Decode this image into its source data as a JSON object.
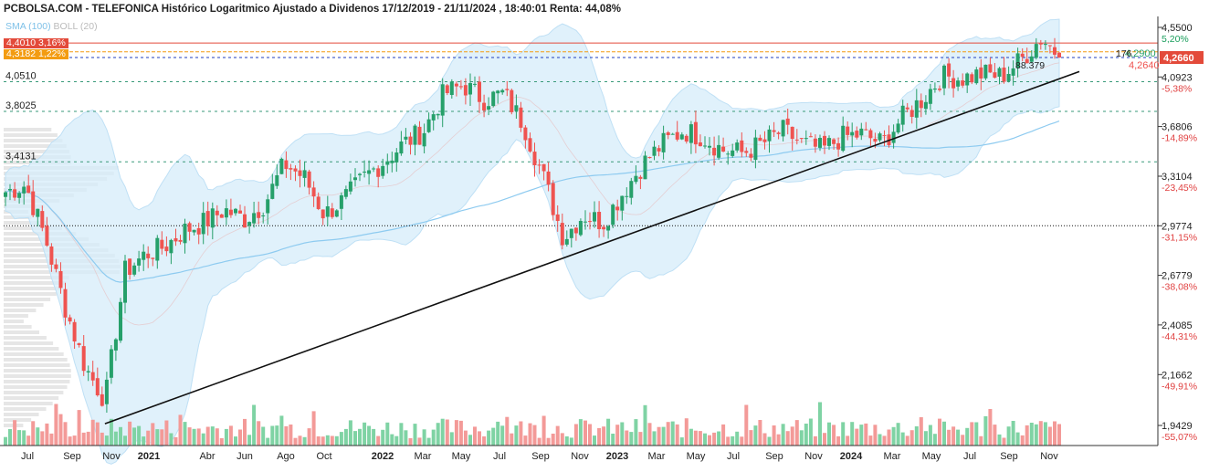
{
  "header": {
    "title": "PCBOLSA.COM - TELEFONICA Histórico Logaritmico Ajustado a Dividenos 17/12/2019 - 21/11/2024 , 18:40:01 Renta: 44,08%",
    "legend_sma": "SMA (100)",
    "legend_boll": "BOLL (20)"
  },
  "tags": {
    "red": "4,4010  3,16%",
    "orange": "4,3182  1,22%"
  },
  "levels": [
    "4,0510",
    "3,8025",
    "3,4131"
  ],
  "right_axis": [
    {
      "price": "4,5500",
      "pct": "5,20%",
      "pct_color": "#1a9e5c"
    },
    {
      "price": "4,0923",
      "pct": "-5,38%",
      "pct_color": "#e04040"
    },
    {
      "price": "3,6806",
      "pct": "-14,89%",
      "pct_color": "#e04040"
    },
    {
      "price": "3,3104",
      "pct": "-23,45%",
      "pct_color": "#e04040"
    },
    {
      "price": "2,9774",
      "pct": "-31,15%",
      "pct_color": "#e04040"
    },
    {
      "price": "2,6779",
      "pct": "-38,08%",
      "pct_color": "#e04040"
    },
    {
      "price": "2,4085",
      "pct": "-44,31%",
      "pct_color": "#e04040"
    },
    {
      "price": "2,1662",
      "pct": "-49,91%",
      "pct_color": "#e04040"
    },
    {
      "price": "1,9429",
      "pct": "-55,07%",
      "pct_color": "#e04040"
    }
  ],
  "annotations": {
    "last_price": "4,2660",
    "green_value": "4,2900",
    "red_value": "4,2640",
    "volume_left": "176",
    "volume_mid": "88.379"
  },
  "colors": {
    "up": "#26a06a",
    "down": "#ef5350",
    "band": "#d6ecfa",
    "sma": "#8ecbf0",
    "red_line": "#e34a3a",
    "orange_line": "#f39c12",
    "blue_line": "#1f3fbf"
  },
  "chart_data": {
    "type": "candlestick",
    "scale": "log",
    "title": "PCBOLSA.COM - TELEFONICA Histórico Logaritmico Ajustado a Dividenos 17/12/2019 - 21/11/2024 , 18:40:01 Renta: 44,08%",
    "x_tick_labels": [
      "Jul",
      "Sep",
      "Nov",
      "2021",
      "Abr",
      "Jun",
      "Ago",
      "Oct",
      "2022",
      "Mar",
      "May",
      "Jul",
      "Sep",
      "Nov",
      "2023",
      "Mar",
      "May",
      "Jul",
      "Sep",
      "Nov",
      "2024",
      "Mar",
      "May",
      "Jul",
      "Sep",
      "Nov"
    ],
    "y_ticks": [
      4.55,
      4.0923,
      3.6806,
      3.3104,
      2.9774,
      2.6779,
      2.4085,
      2.1662,
      1.9429
    ],
    "ylim": [
      1.88,
      4.75
    ],
    "horizontal_levels": [
      4.401,
      4.3182,
      4.266,
      4.051,
      3.8025,
      3.4131,
      2.9774
    ],
    "sma_period": 100,
    "boll_period": 20,
    "last_price": 4.266,
    "return_pct": 44.08,
    "trendline": [
      {
        "x": "Nov 2020",
        "y": 1.95
      },
      {
        "x": "Nov 2024",
        "y": 4.14
      }
    ],
    "close_waypoints": [
      {
        "x": "Jun 2020",
        "y": 3.2
      },
      {
        "x": "Jul 2020",
        "y": 3.25
      },
      {
        "x": "Aug 2020",
        "y": 2.9
      },
      {
        "x": "Sep 2020",
        "y": 2.5
      },
      {
        "x": "Oct 2020",
        "y": 2.2
      },
      {
        "x": "Nov 2020",
        "y": 2.05
      },
      {
        "x": "Dec 2020",
        "y": 2.7
      },
      {
        "x": "Jan 2021",
        "y": 2.8
      },
      {
        "x": "Feb 2021",
        "y": 2.85
      },
      {
        "x": "Mar 2021",
        "y": 2.95
      },
      {
        "x": "Apr 2021",
        "y": 3.0
      },
      {
        "x": "May 2021",
        "y": 3.08
      },
      {
        "x": "Jun 2021",
        "y": 3.02
      },
      {
        "x": "Jul 2021",
        "y": 3.12
      },
      {
        "x": "Aug 2021",
        "y": 3.4
      },
      {
        "x": "Sep 2021",
        "y": 3.3
      },
      {
        "x": "Oct 2021",
        "y": 3.05
      },
      {
        "x": "Nov 2021",
        "y": 3.15
      },
      {
        "x": "Dec 2021",
        "y": 3.3
      },
      {
        "x": "Jan 2022",
        "y": 3.42
      },
      {
        "x": "Feb 2022",
        "y": 3.55
      },
      {
        "x": "Mar 2022",
        "y": 3.65
      },
      {
        "x": "Apr 2022",
        "y": 3.95
      },
      {
        "x": "May 2022",
        "y": 4.02
      },
      {
        "x": "Jun 2022",
        "y": 3.9
      },
      {
        "x": "Jul 2022",
        "y": 3.95
      },
      {
        "x": "Aug 2022",
        "y": 3.7
      },
      {
        "x": "Sep 2022",
        "y": 3.3
      },
      {
        "x": "Oct 2022",
        "y": 2.9
      },
      {
        "x": "Nov 2022",
        "y": 3.05
      },
      {
        "x": "Dec 2022",
        "y": 3.0
      },
      {
        "x": "Jan 2023",
        "y": 3.2
      },
      {
        "x": "Feb 2023",
        "y": 3.4
      },
      {
        "x": "Mar 2023",
        "y": 3.55
      },
      {
        "x": "Apr 2023",
        "y": 3.65
      },
      {
        "x": "May 2023",
        "y": 3.6
      },
      {
        "x": "Jun 2023",
        "y": 3.5
      },
      {
        "x": "Jul 2023",
        "y": 3.48
      },
      {
        "x": "Aug 2023",
        "y": 3.55
      },
      {
        "x": "Sep 2023",
        "y": 3.65
      },
      {
        "x": "Oct 2023",
        "y": 3.55
      },
      {
        "x": "Nov 2023",
        "y": 3.5
      },
      {
        "x": "Dec 2023",
        "y": 3.6
      },
      {
        "x": "Jan 2024",
        "y": 3.62
      },
      {
        "x": "Feb 2024",
        "y": 3.55
      },
      {
        "x": "Mar 2024",
        "y": 3.75
      },
      {
        "x": "Apr 2024",
        "y": 3.9
      },
      {
        "x": "May 2024",
        "y": 4.1
      },
      {
        "x": "Jun 2024",
        "y": 4.08
      },
      {
        "x": "Jul 2024",
        "y": 4.12
      },
      {
        "x": "Aug 2024",
        "y": 4.1
      },
      {
        "x": "Sep 2024",
        "y": 4.25
      },
      {
        "x": "Oct 2024",
        "y": 4.45
      },
      {
        "x": "Nov 2024",
        "y": 4.266
      }
    ]
  }
}
